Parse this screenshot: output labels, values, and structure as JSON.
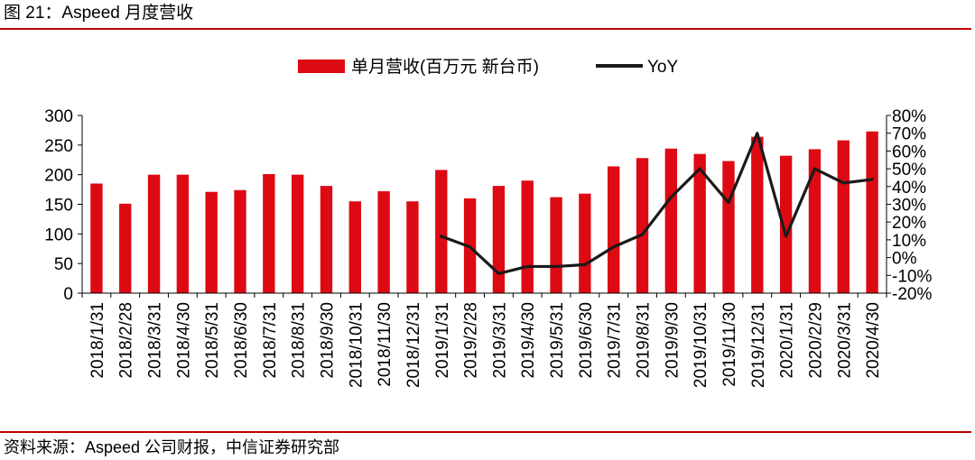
{
  "figure": {
    "title": "图 21：Aspeed 月度营收",
    "source": "资料来源：Aspeed 公司财报，中信证券研究部"
  },
  "colors": {
    "bar": "#dd0a13",
    "line": "#1a1a1a",
    "rule": "#c00000",
    "axis": "#000000"
  },
  "chart_data": {
    "type": "bar",
    "title": "",
    "categories": [
      "2018/1/31",
      "2018/2/28",
      "2018/3/31",
      "2018/4/30",
      "2018/5/31",
      "2018/6/30",
      "2018/7/31",
      "2018/8/31",
      "2018/9/30",
      "2018/10/31",
      "2018/11/30",
      "2018/12/31",
      "2019/1/31",
      "2019/2/28",
      "2019/3/31",
      "2019/4/30",
      "2019/5/31",
      "2019/6/30",
      "2019/7/31",
      "2019/8/31",
      "2019/9/30",
      "2019/10/31",
      "2019/11/30",
      "2019/12/31",
      "2020/1/31",
      "2020/2/29",
      "2020/3/31",
      "2020/4/30"
    ],
    "series": [
      {
        "name": "单月营收(百万元 新台币)",
        "type": "bar",
        "axis": "left",
        "values": [
          185,
          151,
          200,
          200,
          171,
          174,
          201,
          200,
          181,
          155,
          172,
          155,
          208,
          160,
          181,
          190,
          162,
          168,
          214,
          228,
          244,
          235,
          223,
          264,
          232,
          243,
          258,
          273
        ]
      },
      {
        "name": "YoY",
        "type": "line",
        "axis": "right",
        "unit": "%",
        "values": [
          null,
          null,
          null,
          null,
          null,
          null,
          null,
          null,
          null,
          null,
          null,
          null,
          12,
          6,
          -9,
          -5,
          -5,
          -4,
          6,
          13,
          34,
          50,
          31,
          70,
          12,
          50,
          42,
          44
        ]
      }
    ],
    "yleft": {
      "ylim": [
        0,
        300
      ],
      "ticks": [
        "0",
        "50",
        "100",
        "150",
        "200",
        "250",
        "300"
      ]
    },
    "yright": {
      "ylim": [
        -20,
        80
      ],
      "ticks": [
        "-20%",
        "-10%",
        "0%",
        "10%",
        "20%",
        "30%",
        "40%",
        "50%",
        "60%",
        "70%",
        "80%"
      ]
    },
    "legend": {
      "position": "top",
      "entries": [
        "单月营收(百万元 新台币)",
        "YoY"
      ]
    }
  }
}
